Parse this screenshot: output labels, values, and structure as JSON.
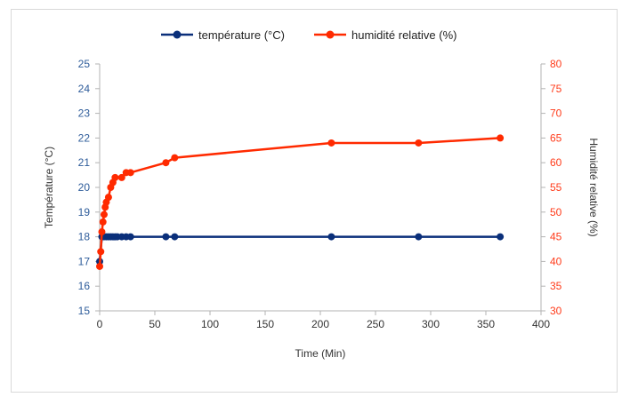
{
  "chart_data": {
    "type": "line",
    "legend_placement": "top",
    "grid": false,
    "xlabel": "Time (Min)",
    "xlim": [
      0,
      400
    ],
    "x_ticks": [
      0,
      50,
      100,
      150,
      200,
      250,
      300,
      350,
      400
    ],
    "y_left": {
      "label": "Température (°C)",
      "lim": [
        15,
        25
      ],
      "ticks": [
        15,
        16,
        17,
        18,
        19,
        20,
        21,
        22,
        23,
        24,
        25
      ],
      "color": "#2e5c9a"
    },
    "y_right": {
      "label": "Humidité relative (%)",
      "lim": [
        30,
        80
      ],
      "ticks": [
        30,
        35,
        40,
        45,
        50,
        55,
        60,
        65,
        70,
        75,
        80
      ],
      "color": "#ff3b1a"
    },
    "series": [
      {
        "name": "température (°C)",
        "axis": "left",
        "color": "#0a2f7a",
        "x": [
          0,
          2,
          4,
          6,
          8,
          10,
          12,
          14,
          16,
          20,
          24,
          28,
          60,
          68,
          210,
          289,
          363
        ],
        "y": [
          17,
          18,
          18,
          18,
          18,
          18,
          18,
          18,
          18,
          18,
          18,
          18,
          18,
          18,
          18,
          18,
          18
        ]
      },
      {
        "name": "humidité relative (%)",
        "axis": "right",
        "color": "#ff2a00",
        "x": [
          0,
          1,
          2,
          3,
          4,
          5,
          6,
          8,
          10,
          12,
          14,
          20,
          24,
          28,
          60,
          68,
          210,
          289,
          363
        ],
        "y": [
          39,
          42,
          46,
          48,
          49.5,
          51,
          52,
          53,
          55,
          56,
          57,
          57,
          58,
          58,
          60,
          61,
          64,
          64,
          65
        ]
      }
    ]
  }
}
